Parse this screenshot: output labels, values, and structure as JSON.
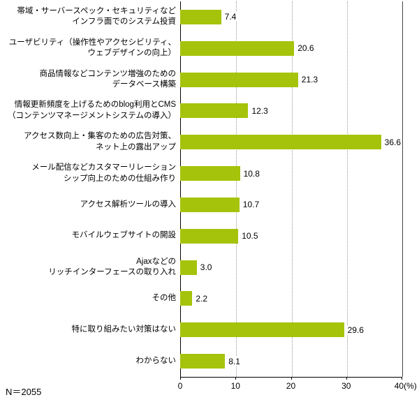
{
  "chart_data": {
    "type": "bar",
    "orientation": "horizontal",
    "title": "",
    "xlabel": "(%)",
    "xlim": [
      0,
      40
    ],
    "grid": "dotted-vertical",
    "legend": "none",
    "bar_color": "#a6c30b",
    "categories": [
      "帯域・サーバースペック・セキュリティなど\nインフラ面でのシステム投資",
      "ユーザビリティ（操作性やアクセシビリティ、\nウェブデザインの向上）",
      "商品情報などコンテンツ増強のための\nデータベース構築",
      "情報更新頻度を上げるためのblog利用とCMS\n（コンテンツマネージメントシステムの導入）",
      "アクセス数向上・集客のための広告対策、\nネット上の露出アップ",
      "メール配信などカスタマーリレーション\nシップ向上のための仕組み作り",
      "アクセス解析ツールの導入",
      "モバイルウェブサイトの開設",
      "Ajaxなどの\nリッチインターフェースの取り入れ",
      "その他",
      "特に取り組みたい対策はない",
      "わからない"
    ],
    "values": [
      7.4,
      20.6,
      21.3,
      12.3,
      36.6,
      10.8,
      10.7,
      10.5,
      3.0,
      2.2,
      29.6,
      8.1
    ],
    "value_labels": [
      "7.4",
      "20.6",
      "21.3",
      "12.3",
      "36.6",
      "10.8",
      "10.7",
      "10.5",
      "3.0",
      "2.2",
      "29.6",
      "8.1"
    ],
    "x_ticks": [
      "0",
      "10",
      "20",
      "30"
    ],
    "x_last_tick": "40(%)",
    "sample_size_label": "N＝2055"
  }
}
